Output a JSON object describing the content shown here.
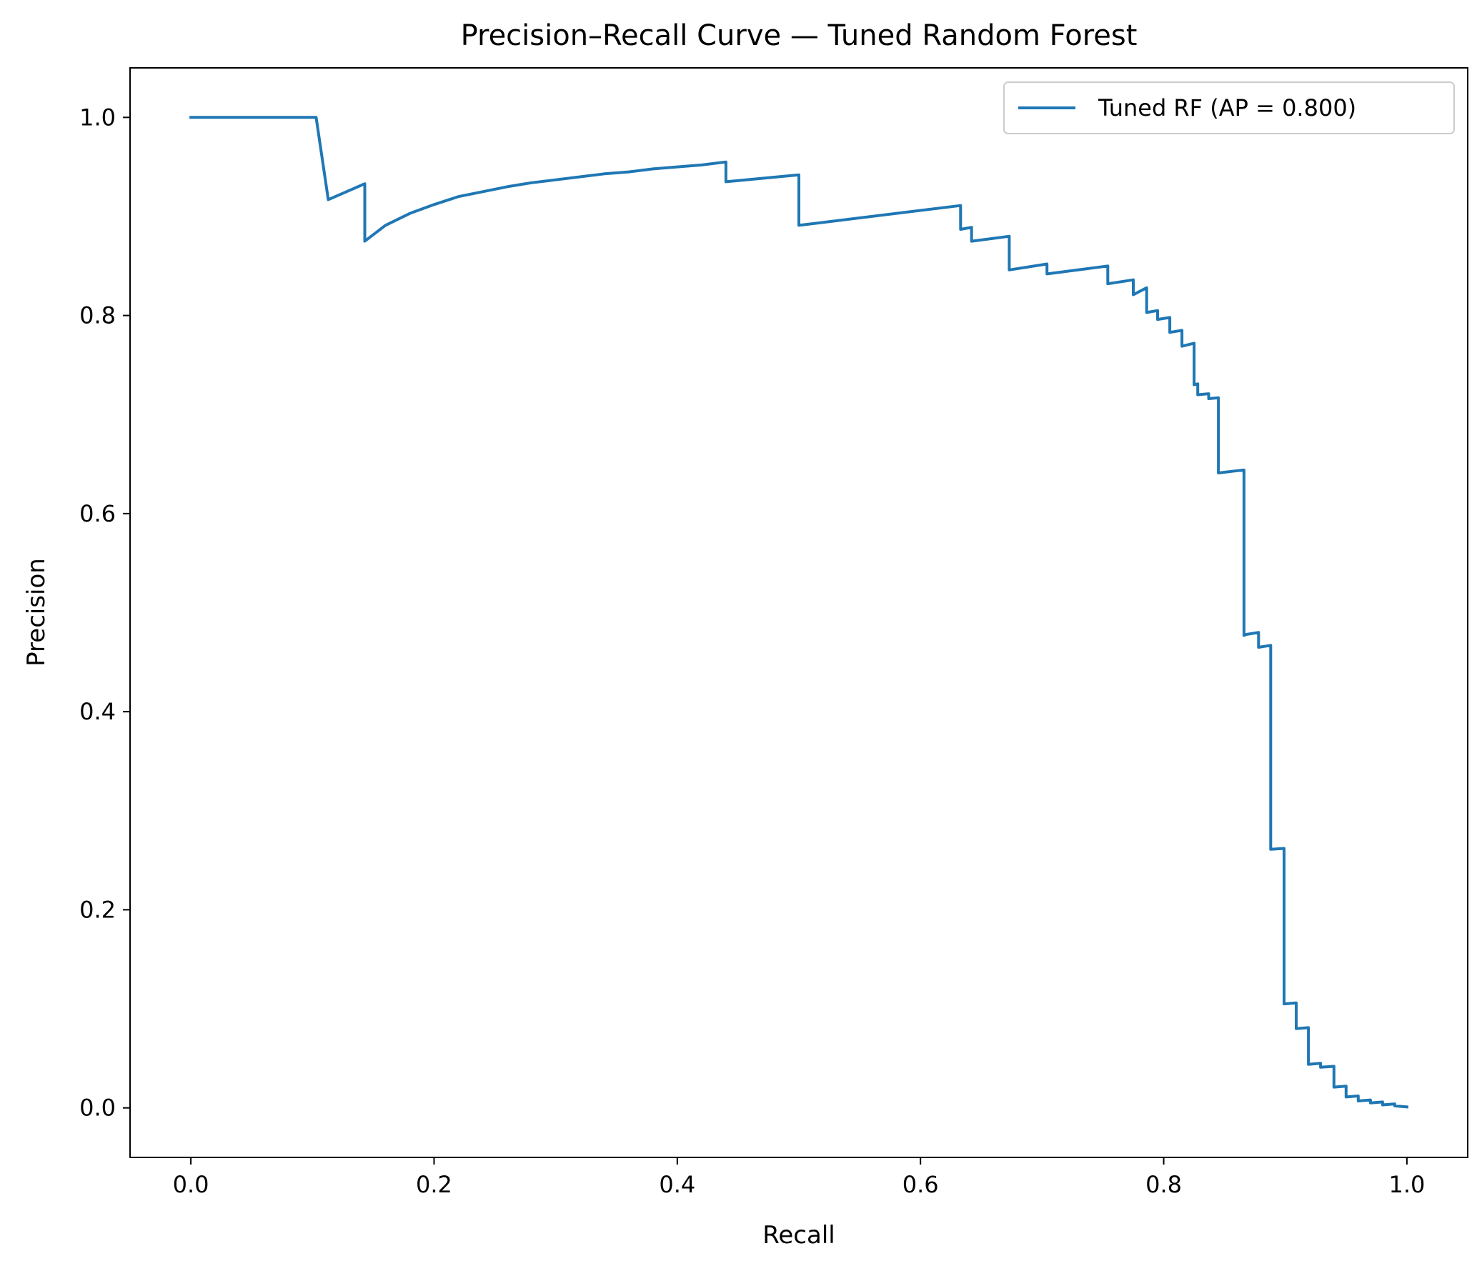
{
  "chart_data": {
    "type": "line",
    "title": "Precision–Recall Curve — Tuned Random Forest",
    "xlabel": "Recall",
    "ylabel": "Precision",
    "xlim": [
      -0.05,
      1.05
    ],
    "ylim": [
      -0.05,
      1.05
    ],
    "xticks": [
      0.0,
      0.2,
      0.4,
      0.6,
      0.8,
      1.0
    ],
    "yticks": [
      0.0,
      0.2,
      0.4,
      0.6,
      0.8,
      1.0
    ],
    "xtick_labels": [
      "0.0",
      "0.2",
      "0.4",
      "0.6",
      "0.8",
      "1.0"
    ],
    "ytick_labels": [
      "0.0",
      "0.2",
      "0.4",
      "0.6",
      "0.8",
      "1.0"
    ],
    "grid": false,
    "legend_position": "top-right",
    "series": [
      {
        "name": "Tuned RF (AP = 0.800)",
        "color": "#1f77b4",
        "x": [
          0.0,
          0.103,
          0.113,
          0.143,
          0.143,
          0.16,
          0.18,
          0.2,
          0.22,
          0.24,
          0.26,
          0.28,
          0.3,
          0.32,
          0.34,
          0.36,
          0.38,
          0.4,
          0.42,
          0.44,
          0.44,
          0.5,
          0.5,
          0.633,
          0.633,
          0.642,
          0.642,
          0.673,
          0.673,
          0.704,
          0.704,
          0.754,
          0.754,
          0.775,
          0.775,
          0.786,
          0.786,
          0.795,
          0.795,
          0.805,
          0.805,
          0.815,
          0.815,
          0.825,
          0.825,
          0.828,
          0.828,
          0.837,
          0.837,
          0.845,
          0.845,
          0.858,
          0.858,
          0.866,
          0.866,
          0.868,
          0.868,
          0.878,
          0.878,
          0.888,
          0.888,
          0.899,
          0.899,
          0.909,
          0.909,
          0.919,
          0.919,
          0.929,
          0.929,
          0.94,
          0.94,
          0.95,
          0.95,
          0.96,
          0.96,
          0.97,
          0.97,
          0.98,
          0.98,
          0.99,
          0.99,
          1.0
        ],
        "y": [
          1.0,
          1.0,
          0.917,
          0.933,
          0.875,
          0.891,
          0.903,
          0.912,
          0.92,
          0.925,
          0.93,
          0.934,
          0.937,
          0.94,
          0.943,
          0.945,
          0.948,
          0.95,
          0.952,
          0.955,
          0.935,
          0.942,
          0.891,
          0.911,
          0.887,
          0.889,
          0.875,
          0.88,
          0.846,
          0.852,
          0.842,
          0.85,
          0.832,
          0.836,
          0.821,
          0.828,
          0.803,
          0.805,
          0.796,
          0.798,
          0.783,
          0.785,
          0.769,
          0.772,
          0.73,
          0.731,
          0.72,
          0.721,
          0.716,
          0.717,
          0.641,
          0.643,
          0.643,
          0.644,
          0.477,
          0.478,
          0.478,
          0.48,
          0.465,
          0.467,
          0.261,
          0.262,
          0.105,
          0.106,
          0.08,
          0.081,
          0.044,
          0.045,
          0.041,
          0.042,
          0.021,
          0.022,
          0.011,
          0.012,
          0.007,
          0.008,
          0.005,
          0.006,
          0.003,
          0.004,
          0.002,
          0.001
        ]
      }
    ]
  }
}
